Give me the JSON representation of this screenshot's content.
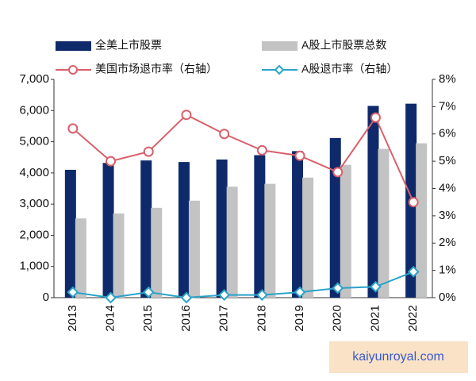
{
  "chart_data": {
    "type": "bar",
    "categories": [
      "2013",
      "2014",
      "2015",
      "2016",
      "2017",
      "2018",
      "2019",
      "2020",
      "2021",
      "2022"
    ],
    "series": [
      {
        "name": "全美上市股票",
        "type": "bar",
        "color": "#0f2a6b",
        "values": [
          4100,
          4320,
          4400,
          4350,
          4430,
          4570,
          4700,
          5120,
          6150,
          6220
        ]
      },
      {
        "name": "A股上市股票总数",
        "type": "bar",
        "color": "#c3c3c3",
        "values": [
          2540,
          2700,
          2880,
          3110,
          3560,
          3650,
          3850,
          4260,
          4770,
          4950
        ]
      },
      {
        "name": "美国市场退市率（右轴）",
        "type": "line",
        "axis": "y2",
        "marker": "circle",
        "color": "#d9606a",
        "values": [
          6.2,
          5.0,
          5.35,
          6.7,
          6.0,
          5.4,
          5.2,
          4.6,
          6.6,
          3.5
        ]
      },
      {
        "name": "A股退市率（右轴）",
        "type": "line",
        "axis": "y2",
        "marker": "diamond",
        "color": "#2aa3c9",
        "values": [
          0.2,
          0.0,
          0.2,
          0.0,
          0.1,
          0.1,
          0.2,
          0.35,
          0.4,
          0.95
        ]
      }
    ],
    "ylim": [
      0,
      7000
    ],
    "yticks": [
      0,
      {
        "value": 1000,
        "label": "1,000"
      },
      {
        "value": 2000,
        "label": "2,000"
      },
      {
        "value": 3000,
        "label": "3,000"
      },
      {
        "value": 4000,
        "label": "4,000"
      },
      {
        "value": 5000,
        "label": "5,000"
      },
      {
        "value": 6000,
        "label": "6,000"
      },
      {
        "value": 7000,
        "label": "7,000"
      }
    ],
    "y2lim": [
      0,
      8
    ],
    "y2ticks": [
      {
        "value": 0,
        "label": "0%"
      },
      {
        "value": 1,
        "label": "1%"
      },
      {
        "value": 2,
        "label": "2%"
      },
      {
        "value": 3,
        "label": "3%"
      },
      {
        "value": 4,
        "label": "4%"
      },
      {
        "value": 5,
        "label": "5%"
      },
      {
        "value": 6,
        "label": "6%"
      },
      {
        "value": 7,
        "label": "7%"
      },
      {
        "value": 8,
        "label": "8%"
      }
    ],
    "grid": false,
    "watermark": "kaiyunroyal.com"
  }
}
